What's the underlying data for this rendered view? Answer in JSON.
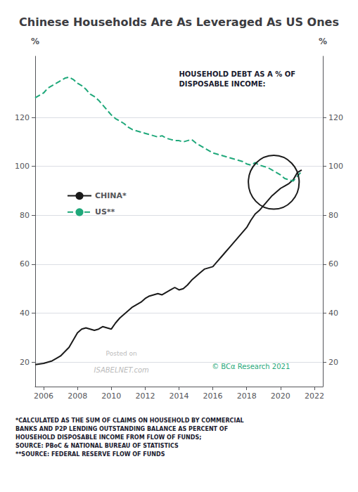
{
  "chart_data": {
    "type": "line",
    "title": "Chinese Households Are As Leveraged As US Ones",
    "annotation": "HOUSEHOLD DEBT AS A % OF\nDISPOSABLE INCOME:",
    "ylabel": "%",
    "y2label": "%",
    "xlim": [
      2005.5,
      2022.5
    ],
    "xticks": [
      2006,
      2008,
      2010,
      2012,
      2014,
      2016,
      2018,
      2020,
      2022
    ],
    "ylim": [
      10,
      145
    ],
    "yticks": [
      20,
      40,
      60,
      80,
      100,
      120
    ],
    "y2lim": [
      10,
      145
    ],
    "y2ticks": [
      20,
      40,
      60,
      80,
      100,
      120
    ],
    "grid": true,
    "legend": "left",
    "series": [
      {
        "name": "CHINA*",
        "color": "#1a1a1a",
        "line_style": "solid",
        "x": [
          2005.5,
          2006.0,
          2006.5,
          2007.0,
          2007.5,
          2008.0,
          2008.25,
          2008.5,
          2008.75,
          2009.0,
          2009.25,
          2009.5,
          2009.75,
          2010.0,
          2010.25,
          2010.5,
          2010.75,
          2011.0,
          2011.25,
          2011.5,
          2011.75,
          2012.0,
          2012.25,
          2012.5,
          2012.75,
          2013.0,
          2013.25,
          2013.5,
          2013.75,
          2014.0,
          2014.25,
          2014.5,
          2014.75,
          2015.0,
          2015.25,
          2015.5,
          2015.75,
          2016.0,
          2016.25,
          2016.5,
          2016.75,
          2017.0,
          2017.25,
          2017.5,
          2017.75,
          2018.0,
          2018.25,
          2018.5,
          2018.75,
          2019.0,
          2019.25,
          2019.5,
          2019.75,
          2020.0,
          2020.25,
          2020.5,
          2020.75,
          2021.0,
          2021.25
        ],
        "values": [
          19.0,
          19.5,
          20.5,
          22.5,
          26.0,
          32.0,
          33.5,
          34.0,
          33.5,
          33.0,
          33.5,
          34.5,
          34.0,
          33.5,
          36.0,
          38.0,
          39.5,
          41.0,
          42.5,
          43.5,
          44.5,
          46.0,
          47.0,
          47.5,
          48.0,
          47.5,
          48.5,
          49.5,
          50.5,
          49.5,
          50.0,
          51.5,
          53.5,
          55.0,
          56.5,
          58.0,
          58.5,
          59.0,
          61.0,
          63.0,
          65.0,
          67.0,
          69.0,
          71.0,
          73.0,
          75.0,
          78.0,
          80.5,
          82.0,
          84.0,
          86.0,
          88.0,
          89.5,
          91.0,
          92.0,
          93.0,
          94.5,
          97.5,
          98.5
        ]
      },
      {
        "name": "US**",
        "color": "#1fa87a",
        "line_style": "dashed",
        "x": [
          2005.5,
          2006.0,
          2006.25,
          2006.5,
          2006.75,
          2007.0,
          2007.25,
          2007.5,
          2007.75,
          2008.0,
          2008.25,
          2008.5,
          2008.75,
          2009.0,
          2009.25,
          2009.5,
          2009.75,
          2010.0,
          2010.25,
          2010.5,
          2010.75,
          2011.0,
          2011.25,
          2011.5,
          2011.75,
          2012.0,
          2012.25,
          2012.5,
          2012.75,
          2013.0,
          2013.25,
          2013.5,
          2013.75,
          2014.0,
          2014.25,
          2014.5,
          2014.75,
          2015.0,
          2015.25,
          2015.5,
          2015.75,
          2016.0,
          2016.25,
          2016.5,
          2016.75,
          2017.0,
          2017.25,
          2017.5,
          2017.75,
          2018.0,
          2018.25,
          2018.5,
          2018.75,
          2019.0,
          2019.25,
          2019.5,
          2019.75,
          2020.0,
          2020.25,
          2020.5,
          2020.75,
          2021.0,
          2021.25
        ],
        "values": [
          128.0,
          130.0,
          132.0,
          133.0,
          134.0,
          135.0,
          136.0,
          136.5,
          135.5,
          134.0,
          133.0,
          131.5,
          129.5,
          128.5,
          127.0,
          125.0,
          123.0,
          121.0,
          119.5,
          118.5,
          117.5,
          116.0,
          115.0,
          114.5,
          114.0,
          113.5,
          113.0,
          112.5,
          112.0,
          112.5,
          111.5,
          111.0,
          110.5,
          110.5,
          110.0,
          110.5,
          111.0,
          109.5,
          108.5,
          107.5,
          106.5,
          105.5,
          105.0,
          104.5,
          104.0,
          103.5,
          103.0,
          102.5,
          102.0,
          101.0,
          100.5,
          101.5,
          100.5,
          100.0,
          99.5,
          98.5,
          97.5,
          96.5,
          95.0,
          94.5,
          94.0,
          96.0,
          98.0
        ]
      }
    ],
    "ellipse": {
      "x": 2019.6,
      "y": 93.5,
      "rx": 1.5,
      "ry": 11
    },
    "watermarks": [
      "Posted on",
      "ISABELNET.com",
      "© BCα Research 2021"
    ],
    "footnote": "*CALCULATED AS THE SUM OF CLAIMS ON HOUSEHOLD BY COMMERCIAL\nBANKS AND P2P LENDING OUTSTANDING BALANCE AS PERCENT OF\nHOUSEHOLD DISPOSABLE INCOME FROM FLOW OF FUNDS;\nSOURCE: PBoC & NATIONAL BUREAU OF STATISTICS\n**SOURCE: FEDERAL RESERVE FLOW OF FUNDS"
  }
}
